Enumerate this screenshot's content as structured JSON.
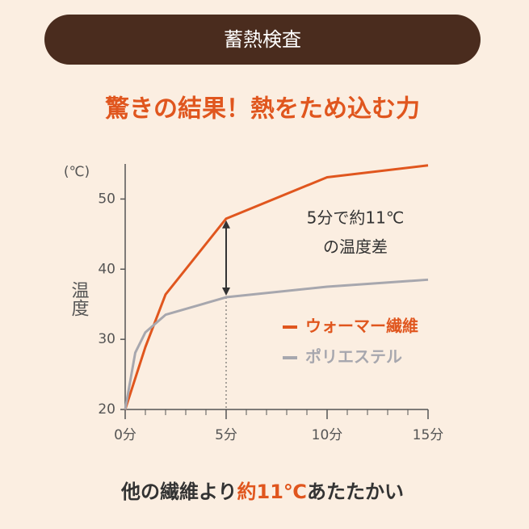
{
  "header": "蓄熱検査",
  "headline": "驚きの結果！熱をため込む力",
  "chart_data": {
    "type": "line",
    "y_unit": "(℃)",
    "y_label": "温度",
    "xlim": [
      0,
      15
    ],
    "xticks": [
      {
        "value": 0,
        "label": "0分"
      },
      {
        "value": 5,
        "label": "5分"
      },
      {
        "value": 10,
        "label": "10分"
      },
      {
        "value": 15,
        "label": "15分"
      }
    ],
    "xminorticks": [
      1,
      2,
      3,
      4,
      6,
      7,
      8,
      9,
      11,
      12,
      13,
      14
    ],
    "ylim": [
      20,
      55
    ],
    "yticks": [
      20,
      30,
      40,
      50
    ],
    "series": [
      {
        "name": "ウォーマー繊維",
        "color": "#e0561e",
        "x": [
          0,
          1,
          2,
          5,
          10,
          15
        ],
        "values": [
          20,
          28.9,
          36.4,
          47.2,
          53.1,
          54.8
        ]
      },
      {
        "name": "ポリエステル",
        "color": "#a7a7ae",
        "x": [
          0,
          0.5,
          1,
          2,
          5,
          10,
          15
        ],
        "values": [
          20,
          28.1,
          31,
          33.5,
          36,
          37.5,
          38.5
        ]
      }
    ],
    "annotation": {
      "lines": [
        "5分で約11℃",
        "の温度差"
      ],
      "x": 5,
      "from": 47.2,
      "to": 36
    }
  },
  "footer": {
    "before": "他の繊維より",
    "highlight": "約11℃",
    "after": "あたたかい"
  }
}
